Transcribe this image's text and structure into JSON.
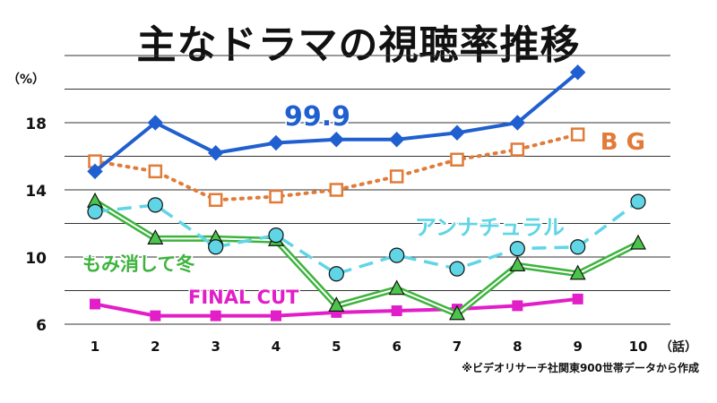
{
  "chart_data": {
    "type": "line",
    "title": "主なドラマの視聴率推移",
    "y_unit": "（%）",
    "x_unit": "（話）",
    "source": "※ビデオリサーチ社関東900世帯データから作成",
    "x": [
      "1",
      "2",
      "3",
      "4",
      "5",
      "6",
      "7",
      "8",
      "9",
      "10"
    ],
    "yticks": [
      "6",
      "10",
      "14",
      "18"
    ],
    "ylim": [
      6,
      22
    ],
    "grid": true,
    "series": [
      {
        "name": "99.9",
        "color": "#1f5fd0",
        "style": "solid",
        "marker": "diamond",
        "values": [
          15.1,
          18.0,
          16.2,
          16.8,
          17.0,
          17.0,
          17.4,
          18.0,
          21.0,
          null
        ]
      },
      {
        "name": "B G",
        "color": "#e07b39",
        "style": "dotted",
        "marker": "square-open",
        "values": [
          15.7,
          15.1,
          13.4,
          13.6,
          14.0,
          14.8,
          15.8,
          16.4,
          17.3,
          null
        ]
      },
      {
        "name": "アンナチュラル",
        "color": "#5fd5e6",
        "style": "dashed",
        "marker": "circle",
        "values": [
          12.7,
          13.1,
          10.6,
          11.3,
          9.0,
          10.1,
          9.3,
          10.5,
          10.6,
          13.3
        ]
      },
      {
        "name": "もみ消して冬",
        "color": "#3db33d",
        "style": "double",
        "marker": "triangle",
        "values": [
          13.3,
          11.1,
          11.1,
          11.0,
          7.1,
          8.1,
          6.6,
          9.5,
          9.0,
          10.8
        ]
      },
      {
        "name": "FINAL CUT",
        "color": "#e21ec8",
        "style": "solid",
        "marker": "square",
        "values": [
          7.2,
          6.5,
          6.5,
          6.5,
          6.7,
          6.8,
          6.9,
          7.1,
          7.5,
          null
        ]
      }
    ]
  }
}
